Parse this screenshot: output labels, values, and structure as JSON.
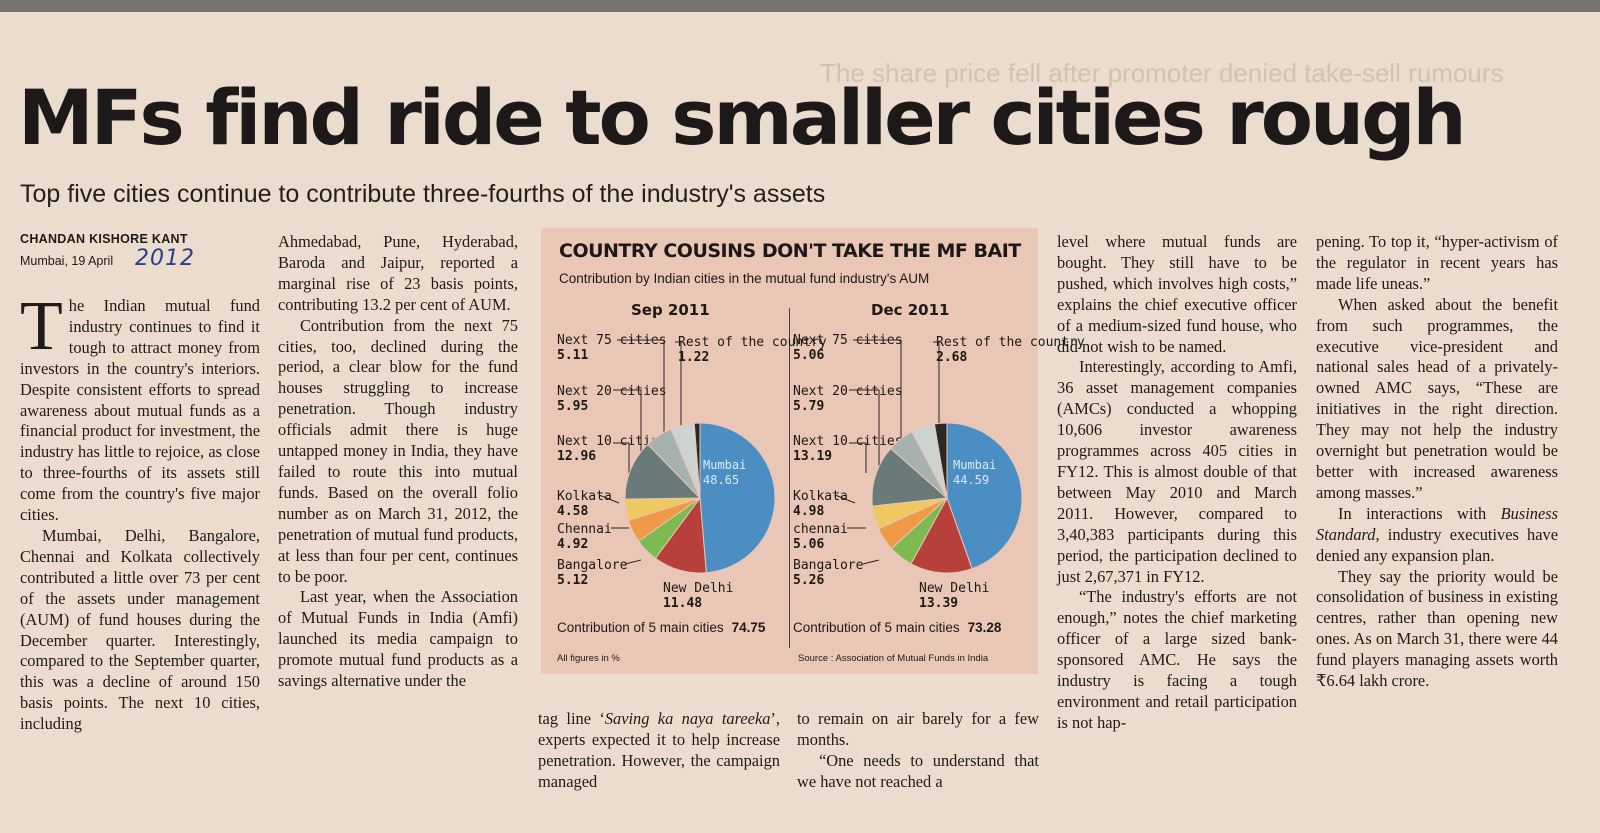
{
  "article": {
    "headline": "MFs find ride to smaller cities rough",
    "subheadline": "Top five cities continue to contribute three-fourths of the industry's assets",
    "byline": "CHANDAN KISHORE KANT",
    "dateline": "Mumbai, 19 April",
    "handwritten_year": "2012",
    "faded_neighbor": "The share price fell after promoter denied take-sell rumours",
    "col1": {
      "dropcap": "T",
      "p1": "he Indian mutual fund industry continues to find it tough to attract money from investors in the country's interiors. Despite consistent efforts to spread awareness about mutual funds as a financial product for investment, the industry has little to rejoice, as close to three-fourths of its assets still come from the country's five major cities.",
      "p2": "Mumbai, Delhi, Bangalore, Chennai and Kolkata collectively contributed a little over 73 per cent of the assets under management (AUM) of fund houses during the December quarter. Interestingly, compared to the September quarter, this was a decline of around 150 basis points. The next 10 cities, including"
    },
    "col2": {
      "p1": "Ahmedabad, Pune, Hyderabad, Baroda and Jaipur, reported a marginal rise of 23 basis points, contributing 13.2 per cent of AUM.",
      "p2": "Contribution from the next 75 cities, too, declined during the period, a clear blow for the fund houses struggling to increase penetration. Though industry officials admit there is huge untapped money in India, they have failed to route this into mutual funds. Based on the overall folio number as on March 31, 2012, the penetration of mutual fund products, at less than four per cent, continues to be poor.",
      "p3": "Last year, when the Association of Mutual Funds in India (Amfi) launched its media campaign to promote mutual fund products as a savings alternative under the"
    },
    "col3_bottom": {
      "pre": "tag line ‘",
      "tagline": "Saving ka naya tareeka",
      "post": "’, experts expected it to help increase penetration. However, the campaign managed"
    },
    "col4_bottom": {
      "p1": "to remain on air barely for a few months.",
      "p2": "“One needs to understand that we have not reached a"
    },
    "col5": {
      "p1": "level where mutual funds are bought. They still have to be pushed, which involves high costs,” explains the chief executive officer of a medium-sized fund house, who did not wish to be named.",
      "p2": "Interestingly, according to Amfi, 36 asset management companies (AMCs) conducted a whopping 10,606 investor awareness programmes across 405 cities in FY12. This is almost double of that between May 2010 and March 2011. However, compared to 3,40,383 participants during this period, the participation declined to just 2,67,371 in FY12.",
      "p3": "“The industry's efforts are not enough,” notes the chief marketing officer of a large sized bank-sponsored AMC. He says the industry is facing a tough environment and retail participation is not hap-"
    },
    "col6": {
      "p1": "pening. To top it, “hyper-activism of the regulator in recent years has made life uneas.”",
      "p2": "When asked about the benefit from such programmes, the executive vice-president and national sales head of a privately-owned AMC says, “These are initiatives in the right direction. They may not help the industry overnight but penetration would be better with increased awareness among masses.”",
      "p3_pre": "In interactions with ",
      "p3_em": "Business Standard",
      "p3_post": ", industry executives have denied any expansion plan.",
      "p4": "They say the priority would be consolidation of business in existing centres, rather than opening new ones. As on March 31, there were 44 fund players managing assets worth ₹6.64 lakh crore."
    }
  },
  "chart_data": [
    {
      "type": "pie",
      "title": "COUNTRY COUSINS DON'T TAKE THE MF BAIT",
      "subtitle": "Contribution by Indian cities in the mutual fund industry's AUM",
      "period": "Sep 2011",
      "slices": [
        {
          "label": "Mumbai",
          "value": 48.65,
          "color": "#4a8ec4"
        },
        {
          "label": "New Delhi",
          "value": 11.48,
          "color": "#b7413a"
        },
        {
          "label": "Bangalore",
          "value": 5.12,
          "color": "#7dbb52"
        },
        {
          "label": "Chennai",
          "value": 4.92,
          "color": "#ee9a46"
        },
        {
          "label": "Kolkata",
          "value": 4.58,
          "color": "#eec860"
        },
        {
          "label": "Next 10 cities",
          "value": 12.96,
          "color": "#6a7a78"
        },
        {
          "label": "Next 20 cities",
          "value": 5.95,
          "color": "#a7b1ae"
        },
        {
          "label": "Next 75 cities",
          "value": 5.11,
          "color": "#cdd3d0"
        },
        {
          "label": "Rest of the country",
          "value": 1.22,
          "color": "#2c2828"
        }
      ],
      "total_label": "Contribution of 5 main cities",
      "total_value": "74.75",
      "footnote": "All figures in %"
    },
    {
      "type": "pie",
      "period": "Dec 2011",
      "slices": [
        {
          "label": "Mumbai",
          "value": 44.59,
          "color": "#4a8ec4"
        },
        {
          "label": "New Delhi",
          "value": 13.39,
          "color": "#b7413a"
        },
        {
          "label": "Bangalore",
          "value": 5.26,
          "color": "#7dbb52"
        },
        {
          "label": "chennai",
          "value": 5.06,
          "color": "#ee9a46"
        },
        {
          "label": "Kolkata",
          "value": 4.98,
          "color": "#eec860"
        },
        {
          "label": "Next 10 cities",
          "value": 13.19,
          "color": "#6a7a78"
        },
        {
          "label": "Next 20 cities",
          "value": 5.79,
          "color": "#a7b1ae"
        },
        {
          "label": "Next 75 cities",
          "value": 5.06,
          "color": "#cdd3d0"
        },
        {
          "label": "Rest of the country",
          "value": 2.68,
          "color": "#2c2828"
        }
      ],
      "total_label": "Contribution of 5 main cities",
      "total_value": "73.28",
      "source": "Source : Association of Mutual Funds in India"
    }
  ]
}
